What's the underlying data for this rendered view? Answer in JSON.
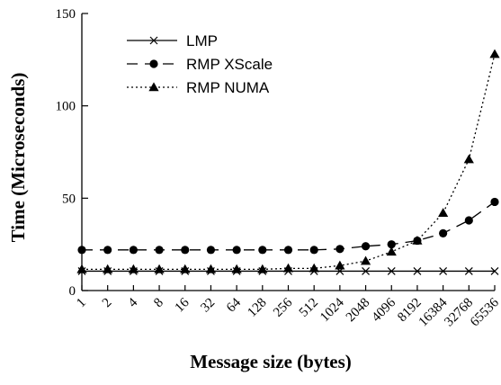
{
  "chart_data": {
    "type": "line",
    "title": "",
    "xlabel": "Message size (bytes)",
    "ylabel": "Time (Microseconds)",
    "categories": [
      "1",
      "2",
      "4",
      "8",
      "16",
      "32",
      "64",
      "128",
      "256",
      "512",
      "1024",
      "2048",
      "4096",
      "8192",
      "16384",
      "32768",
      "65536"
    ],
    "ylim": [
      0,
      150
    ],
    "yticks": [
      "0",
      "50",
      "100",
      "150"
    ],
    "x_scale": "log2",
    "grid": false,
    "legend_position": "top-left",
    "series": [
      {
        "name": "LMP",
        "line_style": "solid",
        "marker": "x-cross",
        "color": "#000000",
        "values": [
          10.5,
          10.5,
          10.5,
          10.5,
          10.5,
          10.5,
          10.5,
          10.5,
          10.5,
          10.5,
          10.5,
          10.5,
          10.5,
          10.5,
          10.5,
          10.5,
          10.5
        ]
      },
      {
        "name": "RMP XScale",
        "line_style": "dashed",
        "marker": "circle",
        "color": "#000000",
        "values": [
          22,
          22,
          22,
          22,
          22,
          22,
          22,
          22,
          22,
          22,
          22.5,
          24,
          25,
          27,
          31,
          38,
          48
        ]
      },
      {
        "name": "RMP NUMA",
        "line_style": "dotted",
        "marker": "triangle",
        "color": "#000000",
        "values": [
          11.5,
          11.5,
          11.5,
          11.5,
          11.5,
          11.5,
          11.5,
          11.5,
          12,
          12,
          13.5,
          16,
          21,
          27,
          42,
          71,
          128
        ]
      }
    ]
  }
}
